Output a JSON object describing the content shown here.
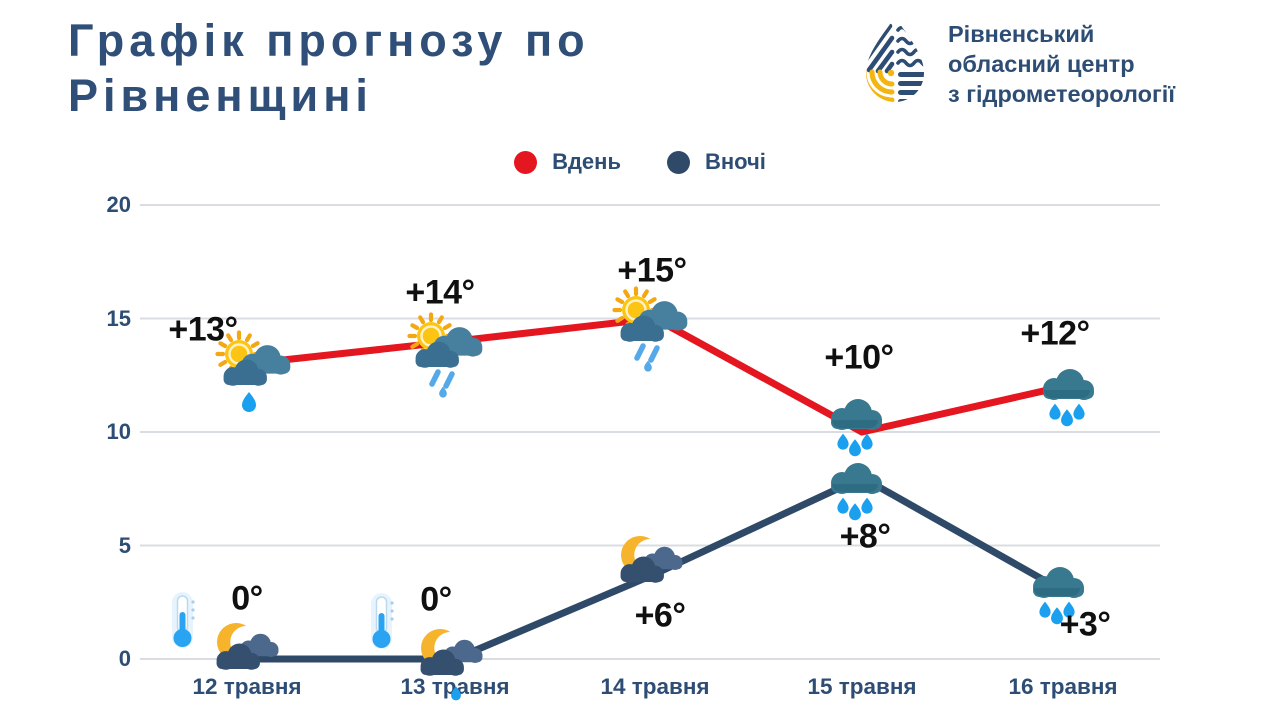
{
  "page": {
    "title_line1": "Графік прогнозу по",
    "title_line2": "Рівненщині"
  },
  "logo": {
    "org_line1": "Рівненський",
    "org_line2": "обласний центр",
    "org_line3": "з гідрометеорології"
  },
  "legend": [
    {
      "label": "Вдень",
      "color": "#e4161f"
    },
    {
      "label": "Вночі",
      "color": "#2e4a68"
    }
  ],
  "axis": {
    "yticks": [
      "20",
      "15",
      "10",
      "5",
      "0"
    ]
  },
  "chart_data": {
    "type": "line",
    "title": "Графік прогнозу по Рівненщині",
    "categories": [
      "12 травня",
      "13 травня",
      "14 травня",
      "15 травня",
      "16 травня"
    ],
    "series": [
      {
        "name": "Вдень",
        "color": "#e4161f",
        "values": [
          13,
          14,
          15,
          10,
          12
        ],
        "labels": [
          "+13°",
          "+14°",
          "+15°",
          "+10°",
          "+12°"
        ],
        "icons": [
          "sun-cloud-drop",
          "sun-cloud-rain",
          "sun-cloud-rain",
          "cloud-rain",
          "cloud-rain"
        ]
      },
      {
        "name": "Вночі",
        "color": "#2e4a68",
        "values": [
          0,
          0,
          6,
          8,
          3
        ],
        "labels": [
          "0°",
          "0°",
          "+6°",
          "+8°",
          "+3°"
        ],
        "icons": [
          "moon-cloud",
          "moon-cloud-rain",
          "moon-cloud",
          "cloud-rain",
          "cloud-rain"
        ]
      }
    ],
    "xlabel": "",
    "ylabel": "",
    "ylim": [
      0,
      20
    ],
    "yticks": [
      0,
      5,
      10,
      15,
      20
    ],
    "grid": true,
    "legend_position": "top-center",
    "extras": {
      "thermometer_on": [
        "12 травня",
        "13 травня"
      ]
    }
  },
  "colors": {
    "title_navy": "#2f4e78",
    "text_navy": "#2e4d74",
    "gridline": "#d9dce2",
    "sun_yellow": "#fcc514",
    "moon_yellow": "#f6b42c",
    "rain_blue": "#1ba0ef",
    "logo_yellow": "#f5b50f"
  }
}
